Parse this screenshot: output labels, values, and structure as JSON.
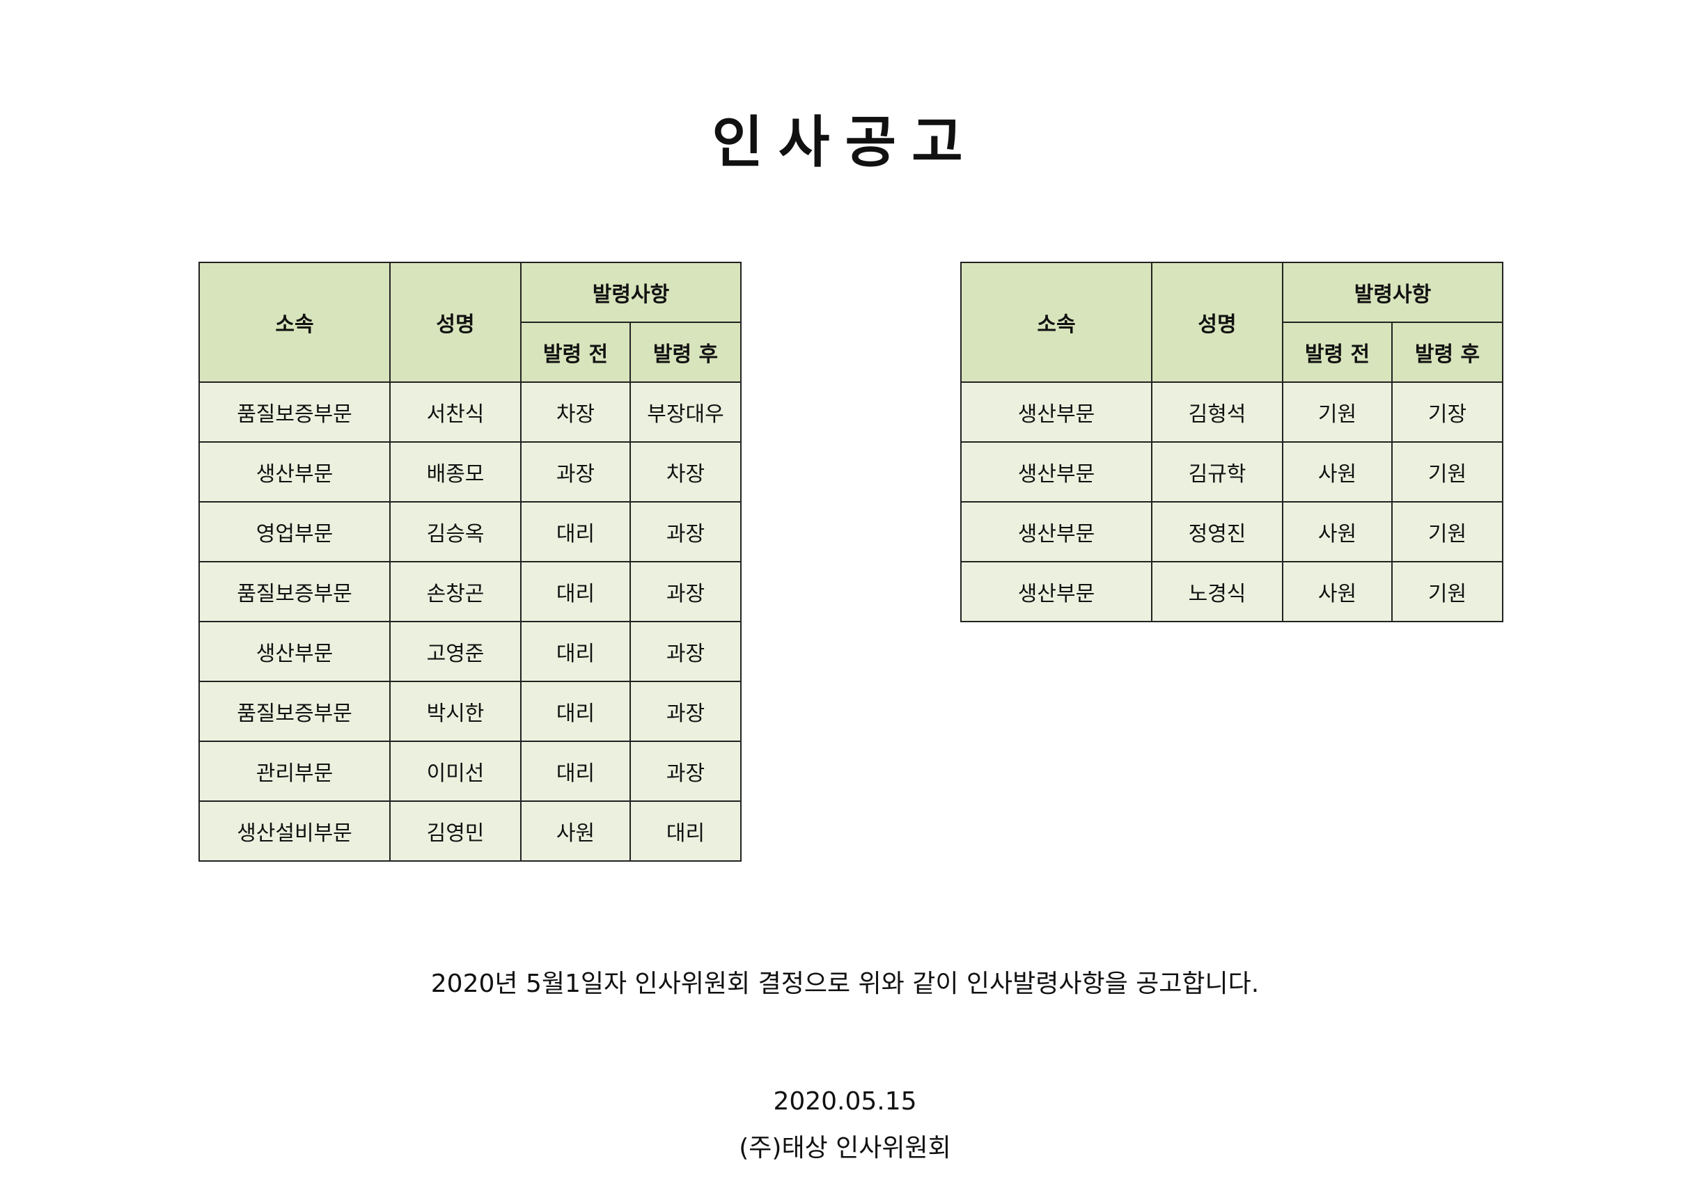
{
  "title": "인사공고",
  "headers": {
    "dept": "소속",
    "name": "성명",
    "group": "발령사항",
    "before": "발령 전",
    "after": "발령 후"
  },
  "left_rows": [
    [
      "품질보증부문",
      "서찬식",
      "차장",
      "부장대우"
    ],
    [
      "생산부문",
      "배종모",
      "과장",
      "차장"
    ],
    [
      "영업부문",
      "김승옥",
      "대리",
      "과장"
    ],
    [
      "품질보증부문",
      "손창곤",
      "대리",
      "과장"
    ],
    [
      "생산부문",
      "고영준",
      "대리",
      "과장"
    ],
    [
      "품질보증부문",
      "박시한",
      "대리",
      "과장"
    ],
    [
      "관리부문",
      "이미선",
      "대리",
      "과장"
    ],
    [
      "생산설비부문",
      "김영민",
      "사원",
      "대리"
    ]
  ],
  "right_rows": [
    [
      "생산부문",
      "김형석",
      "기원",
      "기장"
    ],
    [
      "생산부문",
      "김규학",
      "사원",
      "기원"
    ],
    [
      "생산부문",
      "정영진",
      "사원",
      "기원"
    ],
    [
      "생산부문",
      "노경식",
      "사원",
      "기원"
    ]
  ],
  "notice": "2020년 5월1일자 인사위원회 결정으로 위와 같이 인사발령사항을 공고합니다.",
  "date": "2020.05.15",
  "organization": "(주)태상 인사위원회",
  "colors": {
    "header_bg": "#d8e4bc",
    "cell_bg": "#ebf1de"
  }
}
